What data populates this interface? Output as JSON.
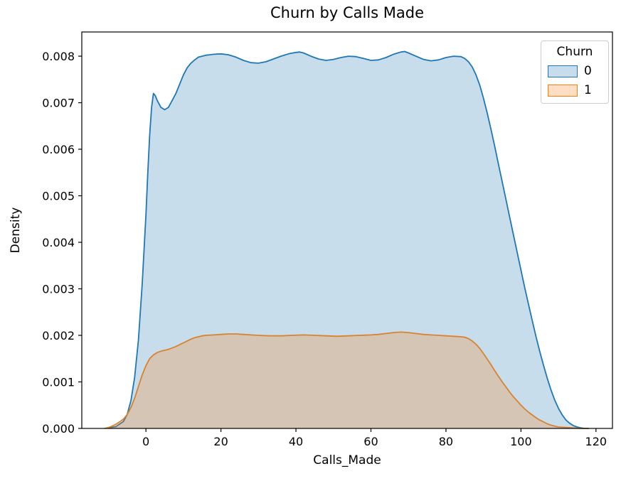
{
  "figure": {
    "title": "Churn by Calls Made",
    "xlabel": "Calls_Made",
    "ylabel": "Density"
  },
  "legend": {
    "title": "Churn",
    "items": [
      {
        "label": "0",
        "fill": "rgba(31,119,180,0.25)",
        "edge": "#1f77b4"
      },
      {
        "label": "1",
        "fill": "rgba(255,127,14,0.25)",
        "edge": "#ff7f0e"
      }
    ]
  },
  "chart_data": {
    "type": "area",
    "subtype": "kde-density",
    "title": "Churn by Calls Made",
    "xlabel": "Calls_Made",
    "ylabel": "Density",
    "grid": false,
    "legend_position": "upper right",
    "legend_title": "Churn",
    "xlim": [
      -17.1,
      124.4
    ],
    "ylim": [
      0,
      0.00852
    ],
    "x_ticks": [
      0,
      20,
      40,
      60,
      80,
      100,
      120
    ],
    "y_ticks": [
      0,
      0.001,
      0.002,
      0.003,
      0.004,
      0.005,
      0.006,
      0.007,
      0.008
    ],
    "y_tick_labels": [
      "0.000",
      "0.001",
      "0.002",
      "0.003",
      "0.004",
      "0.005",
      "0.006",
      "0.007",
      "0.008"
    ],
    "series": [
      {
        "name": "0",
        "line_color": "#1f77b4",
        "fill_color": "rgba(31,119,180,0.25)",
        "points": [
          [
            -10,
            1e-05
          ],
          [
            -8,
            4e-05
          ],
          [
            -6,
            0.00015
          ],
          [
            -5,
            0.0003
          ],
          [
            -4,
            0.0006
          ],
          [
            -3,
            0.0011
          ],
          [
            -2,
            0.0019
          ],
          [
            -1,
            0.0031
          ],
          [
            0,
            0.0046
          ],
          [
            0.5,
            0.0055
          ],
          [
            1,
            0.0063
          ],
          [
            1.5,
            0.0069
          ],
          [
            2,
            0.0072
          ],
          [
            2.5,
            0.00715
          ],
          [
            3,
            0.00705
          ],
          [
            4,
            0.0069
          ],
          [
            5,
            0.00685
          ],
          [
            6,
            0.0069
          ],
          [
            7,
            0.00705
          ],
          [
            8,
            0.0072
          ],
          [
            9,
            0.0074
          ],
          [
            10,
            0.0076
          ],
          [
            11,
            0.00775
          ],
          [
            12,
            0.00785
          ],
          [
            13,
            0.00792
          ],
          [
            14,
            0.00798
          ],
          [
            15,
            0.008
          ],
          [
            16,
            0.00802
          ],
          [
            17,
            0.00803
          ],
          [
            18,
            0.00804
          ],
          [
            20,
            0.00805
          ],
          [
            22,
            0.00803
          ],
          [
            24,
            0.00798
          ],
          [
            26,
            0.00791
          ],
          [
            28,
            0.00786
          ],
          [
            30,
            0.00785
          ],
          [
            32,
            0.00788
          ],
          [
            34,
            0.00794
          ],
          [
            36,
            0.008
          ],
          [
            38,
            0.00805
          ],
          [
            40,
            0.00808
          ],
          [
            41,
            0.00809
          ],
          [
            42,
            0.00807
          ],
          [
            44,
            0.008
          ],
          [
            46,
            0.00794
          ],
          [
            48,
            0.00791
          ],
          [
            50,
            0.00793
          ],
          [
            52,
            0.00797
          ],
          [
            54,
            0.008
          ],
          [
            56,
            0.00799
          ],
          [
            58,
            0.00795
          ],
          [
            60,
            0.00791
          ],
          [
            62,
            0.00792
          ],
          [
            64,
            0.00797
          ],
          [
            66,
            0.00804
          ],
          [
            68,
            0.00809
          ],
          [
            69,
            0.0081
          ],
          [
            70,
            0.00807
          ],
          [
            72,
            0.008
          ],
          [
            74,
            0.00793
          ],
          [
            76,
            0.0079
          ],
          [
            78,
            0.00792
          ],
          [
            80,
            0.00797
          ],
          [
            82,
            0.008
          ],
          [
            84,
            0.00799
          ],
          [
            85,
            0.00795
          ],
          [
            86,
            0.00788
          ],
          [
            87,
            0.00777
          ],
          [
            88,
            0.0076
          ],
          [
            89,
            0.00738
          ],
          [
            90,
            0.0071
          ],
          [
            91,
            0.00678
          ],
          [
            92,
            0.00643
          ],
          [
            93,
            0.00606
          ],
          [
            94,
            0.00568
          ],
          [
            95,
            0.0053
          ],
          [
            96,
            0.00492
          ],
          [
            97,
            0.00454
          ],
          [
            98,
            0.00416
          ],
          [
            99,
            0.00378
          ],
          [
            100,
            0.0034
          ],
          [
            101,
            0.00303
          ],
          [
            102,
            0.00267
          ],
          [
            103,
            0.00232
          ],
          [
            104,
            0.00198
          ],
          [
            105,
            0.00166
          ],
          [
            106,
            0.00136
          ],
          [
            107,
            0.00108
          ],
          [
            108,
            0.00083
          ],
          [
            109,
            0.00061
          ],
          [
            110,
            0.00043
          ],
          [
            111,
            0.00029
          ],
          [
            112,
            0.00018
          ],
          [
            113,
            0.00011
          ],
          [
            114,
            6e-05
          ],
          [
            115,
            3e-05
          ],
          [
            116,
            1e-05
          ],
          [
            117,
            0
          ],
          [
            118,
            0
          ]
        ]
      },
      {
        "name": "1",
        "line_color": "#d9822f",
        "fill_color": "rgba(255,127,14,0.25)",
        "points": [
          [
            -11,
            0
          ],
          [
            -10,
            2e-05
          ],
          [
            -9,
            5e-05
          ],
          [
            -8,
            9e-05
          ],
          [
            -7,
            0.00014
          ],
          [
            -6,
            0.0002
          ],
          [
            -5,
            0.0003
          ],
          [
            -4,
            0.00045
          ],
          [
            -3,
            0.00065
          ],
          [
            -2,
            0.0009
          ],
          [
            -1,
            0.00115
          ],
          [
            0,
            0.00135
          ],
          [
            1,
            0.0015
          ],
          [
            2,
            0.00158
          ],
          [
            3,
            0.00163
          ],
          [
            4,
            0.00166
          ],
          [
            5,
            0.00168
          ],
          [
            6,
            0.0017
          ],
          [
            7,
            0.00173
          ],
          [
            8,
            0.00176
          ],
          [
            9,
            0.0018
          ],
          [
            10,
            0.00184
          ],
          [
            11,
            0.00188
          ],
          [
            12,
            0.00192
          ],
          [
            13,
            0.00195
          ],
          [
            14,
            0.00197
          ],
          [
            15,
            0.00199
          ],
          [
            16,
            0.002
          ],
          [
            18,
            0.00201
          ],
          [
            20,
            0.00202
          ],
          [
            22,
            0.00203
          ],
          [
            24,
            0.00203
          ],
          [
            26,
            0.00202
          ],
          [
            28,
            0.00201
          ],
          [
            30,
            0.002
          ],
          [
            33,
            0.00199
          ],
          [
            36,
            0.00199
          ],
          [
            39,
            0.002
          ],
          [
            42,
            0.00201
          ],
          [
            45,
            0.002
          ],
          [
            48,
            0.00199
          ],
          [
            51,
            0.00198
          ],
          [
            54,
            0.00199
          ],
          [
            57,
            0.002
          ],
          [
            60,
            0.00201
          ],
          [
            62,
            0.00202
          ],
          [
            64,
            0.00204
          ],
          [
            66,
            0.00206
          ],
          [
            68,
            0.00207
          ],
          [
            70,
            0.00206
          ],
          [
            72,
            0.00204
          ],
          [
            74,
            0.00202
          ],
          [
            76,
            0.00201
          ],
          [
            78,
            0.002
          ],
          [
            80,
            0.00199
          ],
          [
            82,
            0.00198
          ],
          [
            84,
            0.00197
          ],
          [
            85,
            0.00196
          ],
          [
            86,
            0.00193
          ],
          [
            87,
            0.00188
          ],
          [
            88,
            0.00181
          ],
          [
            89,
            0.00172
          ],
          [
            90,
            0.00161
          ],
          [
            91,
            0.00149
          ],
          [
            92,
            0.00137
          ],
          [
            93,
            0.00124
          ],
          [
            94,
            0.00112
          ],
          [
            95,
            0.001
          ],
          [
            96,
            0.00089
          ],
          [
            97,
            0.00078
          ],
          [
            98,
            0.00068
          ],
          [
            99,
            0.00059
          ],
          [
            100,
            0.0005
          ],
          [
            101,
            0.00042
          ],
          [
            102,
            0.00035
          ],
          [
            103,
            0.00029
          ],
          [
            104,
            0.00023
          ],
          [
            105,
            0.00018
          ],
          [
            106,
            0.00014
          ],
          [
            107,
            0.0001
          ],
          [
            108,
            7e-05
          ],
          [
            109,
            5e-05
          ],
          [
            110,
            3e-05
          ],
          [
            112,
            2e-05
          ],
          [
            114,
            1e-05
          ],
          [
            116,
            0
          ],
          [
            118,
            0
          ]
        ]
      }
    ]
  }
}
